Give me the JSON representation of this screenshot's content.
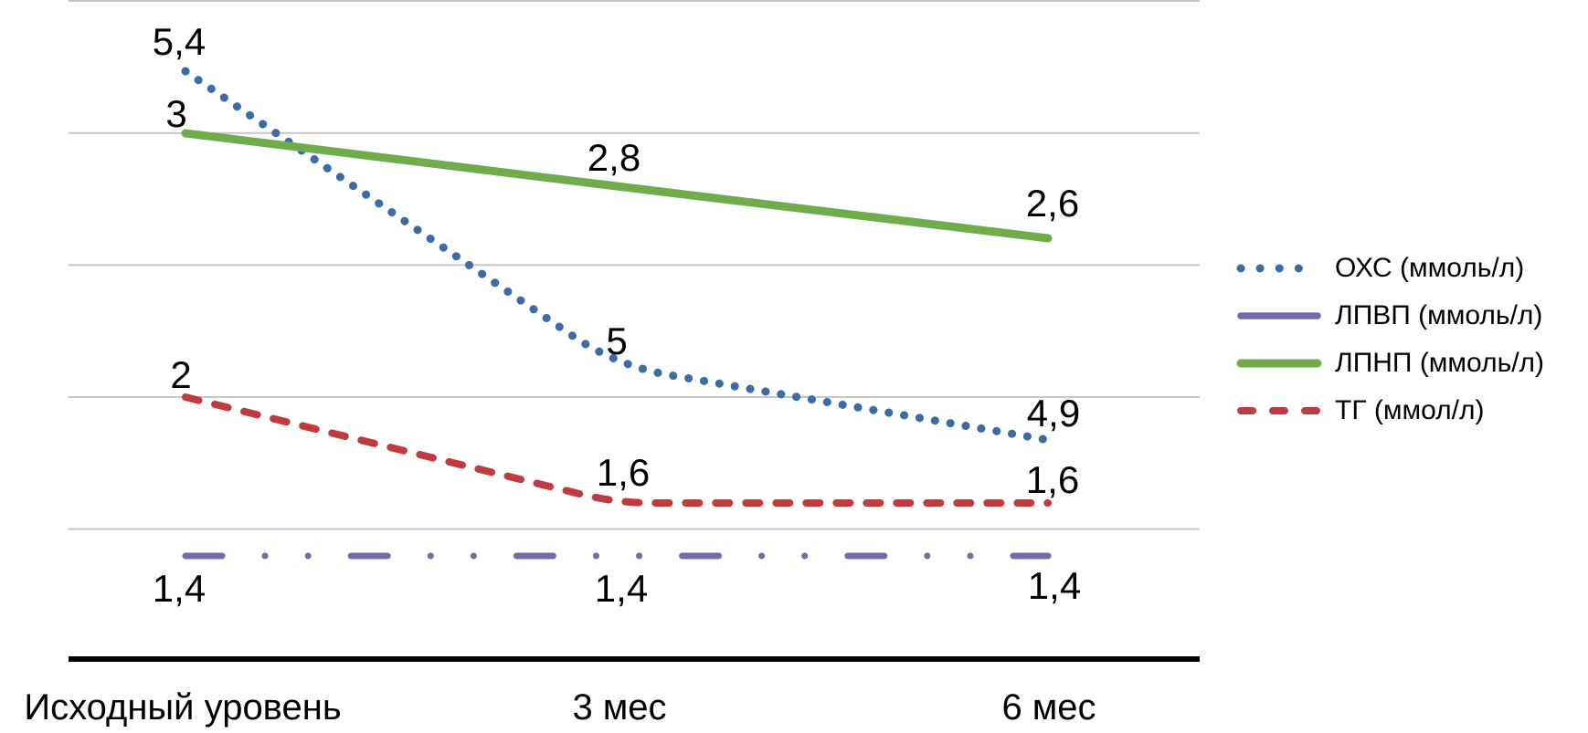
{
  "chart_data": {
    "type": "line",
    "title": "",
    "categories": [
      "Исходный уровень",
      "3 мес",
      "6 мес"
    ],
    "series": [
      {
        "key": "ohs",
        "name": "ОХС (ммоль/л)",
        "values": [
          5.4,
          5.0,
          4.9
        ],
        "point_labels": [
          "5,4",
          "5",
          "4,9"
        ],
        "color": "#3a6ca5",
        "line_style": "dotted",
        "axis": "secondary"
      },
      {
        "key": "lpvp",
        "name": "ЛПВП (ммоль/л)",
        "values": [
          1.4,
          1.4,
          1.4
        ],
        "point_labels": [
          "1,4",
          "1,4",
          "1,4"
        ],
        "color": "#7569ad",
        "line_style": "long-dash-dot-dot",
        "axis": "primary"
      },
      {
        "key": "lpnp",
        "name": "ЛПНП (ммоль/л)",
        "values": [
          3.0,
          2.8,
          2.6
        ],
        "point_labels": [
          "3",
          "2,8",
          "2,6"
        ],
        "color": "#6fac4b",
        "line_style": "solid",
        "axis": "primary"
      },
      {
        "key": "tg",
        "name": "ТГ (ммол/л)",
        "values": [
          2.0,
          1.6,
          1.6
        ],
        "point_labels": [
          "2",
          "1,6",
          "1,6"
        ],
        "color": "#c13b3e",
        "line_style": "dashed",
        "axis": "primary"
      }
    ],
    "legend_position": "right",
    "gridlines": true,
    "primary_axis_range": [
      1.5,
      3.5
    ],
    "gridline_step": 0.5,
    "decimal_separator": ",",
    "colors": {
      "gridline": "#c7c7c7",
      "axis_line": "#000000",
      "text": "#000000",
      "background": "#ffffff"
    }
  }
}
